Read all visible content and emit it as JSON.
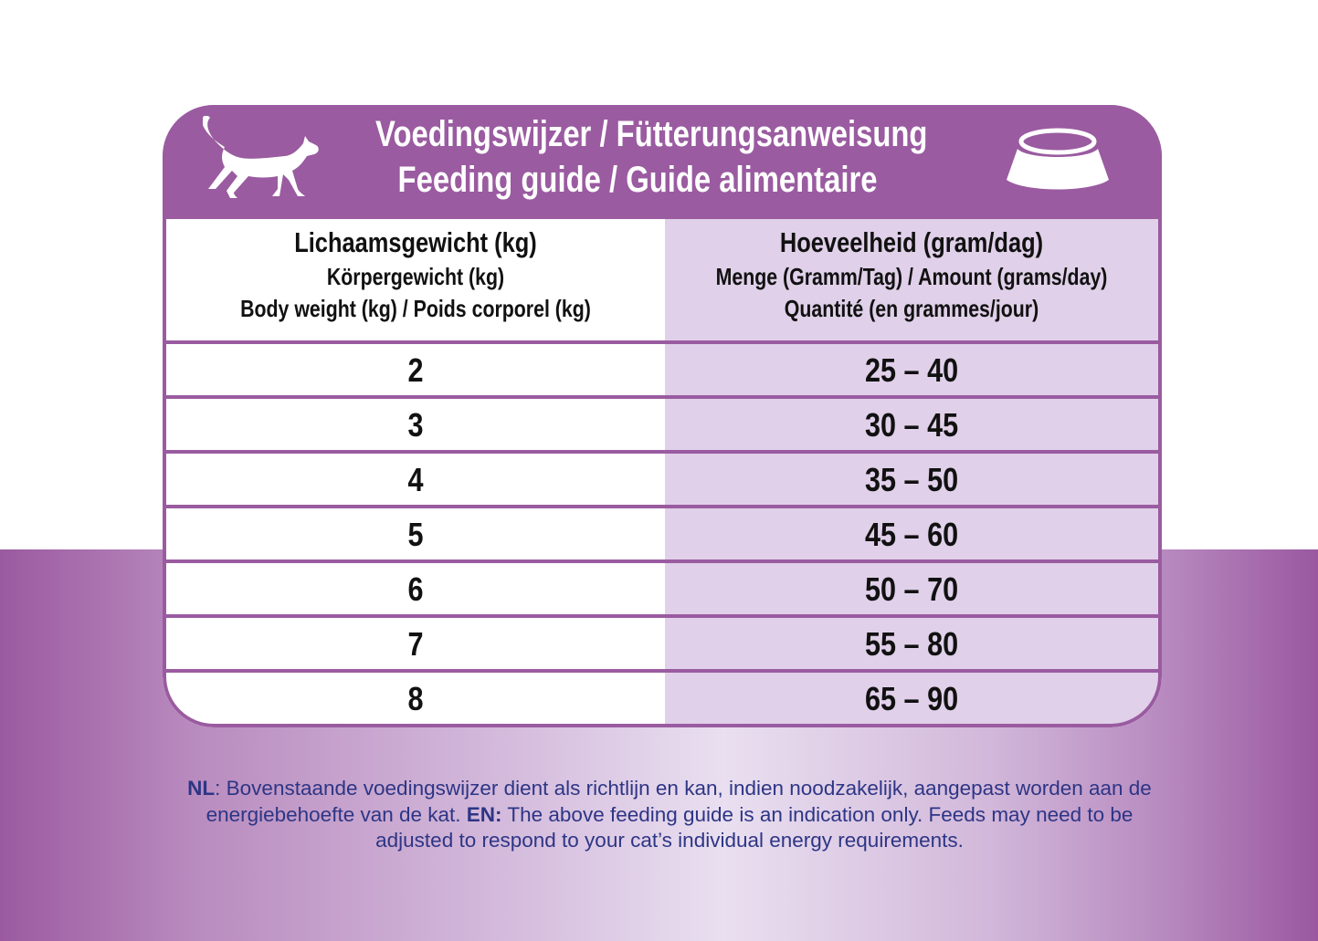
{
  "header": {
    "title_line1": "Voedingswijzer / Fütterungsanweisung",
    "title_line2": "Feeding guide / Guide alimentaire",
    "icons": [
      "cat-icon",
      "food-bowl-icon"
    ]
  },
  "table": {
    "columns": [
      {
        "line1": "Lichaamsgewicht (kg)",
        "line2": "Körpergewicht (kg)",
        "line3": "Body weight (kg) / Poids corporel (kg)"
      },
      {
        "line1": "Hoeveelheid (gram/dag)",
        "line2": "Menge (Gramm/Tag) / Amount (grams/day)",
        "line3": "Quantité (en grammes/jour)"
      }
    ],
    "rows": [
      {
        "weight": "2",
        "amount": "25 – 40"
      },
      {
        "weight": "3",
        "amount": "30 – 45"
      },
      {
        "weight": "4",
        "amount": "35 – 50"
      },
      {
        "weight": "5",
        "amount": "45 – 60"
      },
      {
        "weight": "6",
        "amount": "50 – 70"
      },
      {
        "weight": "7",
        "amount": "55 – 80"
      },
      {
        "weight": "8",
        "amount": "65 – 90"
      }
    ]
  },
  "footer": {
    "nl_label": "NL",
    "nl_text": ": Bovenstaande voedingswijzer dient als richtlijn en kan, indien noodzakelijk, aangepast worden aan de energiebehoefte van de kat. ",
    "en_label": "EN:",
    "en_text": " The above feeding guide is an indication only. Feeds may need to be adjusted to respond to your cat’s individual energy requirements."
  },
  "colors": {
    "primary": "#9a5ba0",
    "column_tint": "#e0d0e9",
    "footer_text": "#2d3585"
  }
}
